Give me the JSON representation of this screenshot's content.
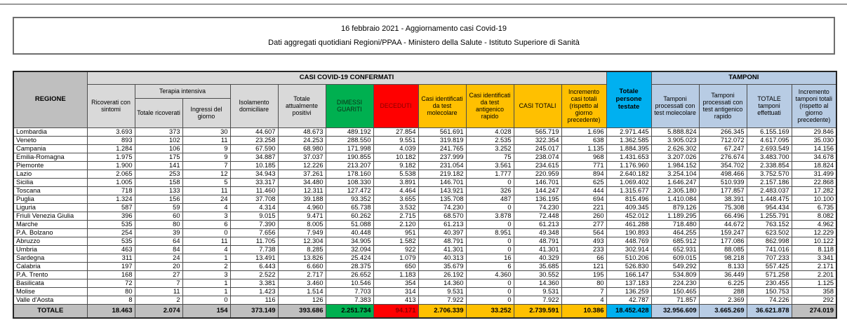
{
  "header": {
    "line1": "16 febbraio 2021 - Aggiornamento casi Covid-19",
    "line2": "Dati aggregati quotidiani Regioni/PPAA - Ministero della Salute - Istituto Superiore di Sanità"
  },
  "colors": {
    "dimessi_green": "#00B050",
    "deceduti_red": "#FF0000",
    "casi_yellow": "#FFC000",
    "persone_testate_cyan": "#00B0F0",
    "tamponi_blue": "#B8CCE4",
    "header_gray": "#D9D9D9",
    "regione_gray": "#BFBFBF"
  },
  "table": {
    "headers": {
      "regione": "REGIONE",
      "confermati": "CASI COVID-19 CONFERMATI",
      "tamponi": "TAMPONI",
      "ricoverati": "Ricoverati con sintomi",
      "terapia_intensiva": "Terapia intensiva",
      "totale_ricoverati": "Totale ricoverati",
      "ingressi": "Ingressi del giorno",
      "isolamento": "Isolamento domiciliare",
      "attualmente_positivi": "Totale attualmente positivi",
      "dimessi": "DIMESSI GUARITI",
      "deceduti": "DECEDUTI",
      "casi_molecolare": "Casi identificati da test molecolare",
      "casi_antigenico": "Casi identificati da test antigenico rapido",
      "casi_totali": "CASI TOTALI",
      "incremento_casi": "Incremento casi totali (rispetto al giorno precedente)",
      "persone_testate": "Totale persone testate",
      "tamponi_molecolare": "Tamponi processati con test molecolare",
      "tamponi_antigenico": "Tamponi processati con test antigenico rapido",
      "totale_tamponi": "TOTALE tamponi effettuati",
      "incremento_tamponi": "Incremento tamponi totali (rispetto al giorno precedente)"
    },
    "rows": [
      [
        "Lombardia",
        "3.693",
        "373",
        "30",
        "44.607",
        "48.673",
        "489.192",
        "27.854",
        "561.691",
        "4.028",
        "565.719",
        "1.696",
        "2.971.445",
        "5.888.824",
        "266.345",
        "6.155.169",
        "29.846"
      ],
      [
        "Veneto",
        "893",
        "102",
        "11",
        "23.258",
        "24.253",
        "288.550",
        "9.551",
        "319.819",
        "2.535",
        "322.354",
        "638",
        "1.362.585",
        "3.905.023",
        "712.072",
        "4.617.095",
        "35.030"
      ],
      [
        "Campania",
        "1.284",
        "106",
        "9",
        "67.590",
        "68.980",
        "171.998",
        "4.039",
        "241.765",
        "3.252",
        "245.017",
        "1.135",
        "1.884.395",
        "2.626.302",
        "67.247",
        "2.693.549",
        "14.156"
      ],
      [
        "Emilia-Romagna",
        "1.975",
        "175",
        "9",
        "34.887",
        "37.037",
        "190.855",
        "10.182",
        "237.999",
        "75",
        "238.074",
        "968",
        "1.431.653",
        "3.207.026",
        "276.674",
        "3.483.700",
        "34.678"
      ],
      [
        "Piemonte",
        "1.900",
        "141",
        "7",
        "10.185",
        "12.226",
        "213.207",
        "9.182",
        "231.054",
        "3.561",
        "234.615",
        "771",
        "1.176.960",
        "1.984.152",
        "354.702",
        "2.338.854",
        "18.824"
      ],
      [
        "Lazio",
        "2.065",
        "253",
        "12",
        "34.943",
        "37.261",
        "178.160",
        "5.538",
        "219.182",
        "1.777",
        "220.959",
        "894",
        "2.640.182",
        "3.254.104",
        "498.466",
        "3.752.570",
        "31.499"
      ],
      [
        "Sicilia",
        "1.005",
        "158",
        "5",
        "33.317",
        "34.480",
        "108.330",
        "3.891",
        "146.701",
        "0",
        "146.701",
        "625",
        "1.069.402",
        "1.646.247",
        "510.939",
        "2.157.186",
        "22.868"
      ],
      [
        "Toscana",
        "718",
        "133",
        "11",
        "11.460",
        "12.311",
        "127.472",
        "4.464",
        "143.921",
        "326",
        "144.247",
        "444",
        "1.315.677",
        "2.305.180",
        "177.857",
        "2.483.037",
        "17.282"
      ],
      [
        "Puglia",
        "1.324",
        "156",
        "24",
        "37.708",
        "39.188",
        "93.352",
        "3.655",
        "135.708",
        "487",
        "136.195",
        "694",
        "815.496",
        "1.410.084",
        "38.391",
        "1.448.475",
        "10.100"
      ],
      [
        "Liguria",
        "587",
        "59",
        "4",
        "4.314",
        "4.960",
        "65.738",
        "3.532",
        "74.230",
        "0",
        "74.230",
        "221",
        "409.345",
        "879.126",
        "75.308",
        "954.434",
        "6.735"
      ],
      [
        "Friuli Venezia Giulia",
        "396",
        "60",
        "3",
        "9.015",
        "9.471",
        "60.262",
        "2.715",
        "68.570",
        "3.878",
        "72.448",
        "260",
        "452.012",
        "1.189.295",
        "66.496",
        "1.255.791",
        "8.082"
      ],
      [
        "Marche",
        "535",
        "80",
        "6",
        "7.390",
        "8.005",
        "51.088",
        "2.120",
        "61.213",
        "0",
        "61.213",
        "277",
        "461.288",
        "718.480",
        "44.672",
        "763.152",
        "4.962"
      ],
      [
        "P.A. Bolzano",
        "254",
        "39",
        "0",
        "7.656",
        "7.949",
        "40.448",
        "951",
        "40.397",
        "8.951",
        "49.348",
        "564",
        "190.893",
        "464.255",
        "159.247",
        "623.502",
        "12.229"
      ],
      [
        "Abruzzo",
        "535",
        "64",
        "11",
        "11.705",
        "12.304",
        "34.905",
        "1.582",
        "48.791",
        "0",
        "48.791",
        "493",
        "448.769",
        "685.912",
        "177.086",
        "862.998",
        "10.122"
      ],
      [
        "Umbria",
        "463",
        "84",
        "4",
        "7.738",
        "8.285",
        "32.094",
        "922",
        "41.301",
        "0",
        "41.301",
        "233",
        "302.914",
        "652.931",
        "88.085",
        "741.016",
        "8.118"
      ],
      [
        "Sardegna",
        "311",
        "24",
        "1",
        "13.491",
        "13.826",
        "25.424",
        "1.079",
        "40.313",
        "16",
        "40.329",
        "66",
        "510.206",
        "609.015",
        "98.218",
        "707.233",
        "3.341"
      ],
      [
        "Calabria",
        "197",
        "20",
        "2",
        "6.443",
        "6.660",
        "28.375",
        "650",
        "35.679",
        "6",
        "35.685",
        "121",
        "526.830",
        "549.292",
        "8.133",
        "557.425",
        "2.171"
      ],
      [
        "P.A. Trento",
        "168",
        "27",
        "3",
        "2.522",
        "2.717",
        "26.652",
        "1.183",
        "26.192",
        "4.360",
        "30.552",
        "195",
        "166.147",
        "534.809",
        "36.449",
        "571.258",
        "2.201"
      ],
      [
        "Basilicata",
        "72",
        "7",
        "1",
        "3.381",
        "3.460",
        "10.546",
        "354",
        "14.360",
        "0",
        "14.360",
        "80",
        "137.183",
        "224.230",
        "6.225",
        "230.455",
        "1.125"
      ],
      [
        "Molise",
        "80",
        "11",
        "1",
        "1.423",
        "1.514",
        "7.703",
        "314",
        "9.531",
        "0",
        "9.531",
        "7",
        "136.259",
        "150.465",
        "288",
        "150.753",
        "358"
      ],
      [
        "Valle d'Aosta",
        "8",
        "2",
        "0",
        "116",
        "126",
        "7.383",
        "413",
        "7.922",
        "0",
        "7.922",
        "4",
        "42.787",
        "71.857",
        "2.369",
        "74.226",
        "292"
      ]
    ],
    "totals": [
      "TOTALE",
      "18.463",
      "2.074",
      "154",
      "373.149",
      "393.686",
      "2.251.734",
      "94.171",
      "2.706.339",
      "33.252",
      "2.739.591",
      "10.386",
      "18.452.428",
      "32.956.609",
      "3.665.269",
      "36.621.878",
      "274.019"
    ]
  }
}
